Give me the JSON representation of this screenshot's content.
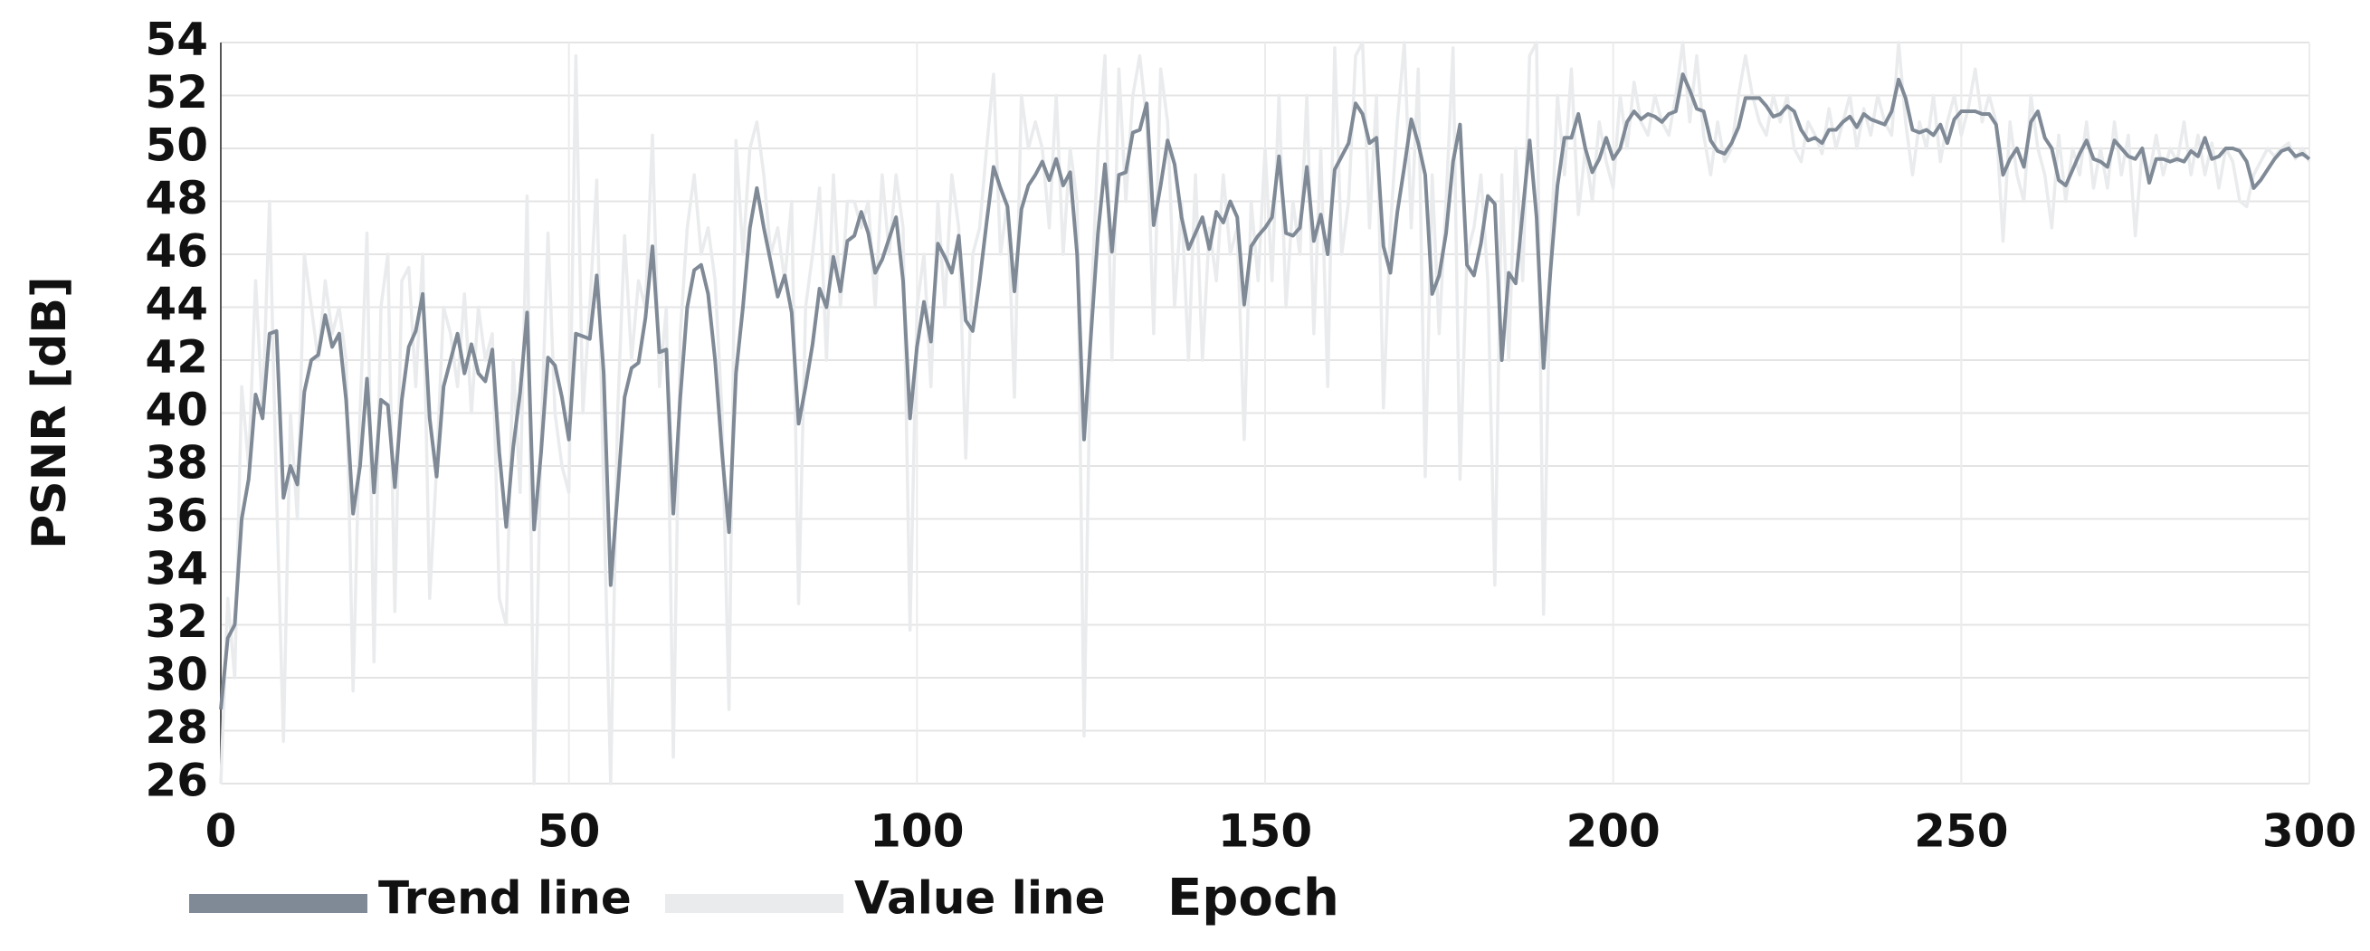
{
  "chart_data": {
    "type": "line",
    "x_label": "Epoch",
    "y_label": "PSNR [dB]",
    "x": [
      0,
      1,
      2,
      3,
      4,
      5,
      6,
      7,
      8,
      9,
      10,
      11,
      12,
      13,
      14,
      15,
      16,
      17,
      18,
      19,
      20,
      21,
      22,
      23,
      24,
      25,
      26,
      27,
      28,
      29,
      30,
      31,
      32,
      33,
      34,
      35,
      36,
      37,
      38,
      39,
      40,
      41,
      42,
      43,
      44,
      45,
      46,
      47,
      48,
      49,
      50,
      51,
      52,
      53,
      54,
      55,
      56,
      57,
      58,
      59,
      60,
      61,
      62,
      63,
      64,
      65,
      66,
      67,
      68,
      69,
      70,
      71,
      72,
      73,
      74,
      75,
      76,
      77,
      78,
      79,
      80,
      81,
      82,
      83,
      84,
      85,
      86,
      87,
      88,
      89,
      90,
      91,
      92,
      93,
      94,
      95,
      96,
      97,
      98,
      99,
      100,
      101,
      102,
      103,
      104,
      105,
      106,
      107,
      108,
      109,
      110,
      111,
      112,
      113,
      114,
      115,
      116,
      117,
      118,
      119,
      120,
      121,
      122,
      123,
      124,
      125,
      126,
      127,
      128,
      129,
      130,
      131,
      132,
      133,
      134,
      135,
      136,
      137,
      138,
      139,
      140,
      141,
      142,
      143,
      144,
      145,
      146,
      147,
      148,
      149,
      150,
      151,
      152,
      153,
      154,
      155,
      156,
      157,
      158,
      159,
      160,
      161,
      162,
      163,
      164,
      165,
      166,
      167,
      168,
      169,
      170,
      171,
      172,
      173,
      174,
      175,
      176,
      177,
      178,
      179,
      180,
      181,
      182,
      183,
      184,
      185,
      186,
      187,
      188,
      189,
      190,
      191,
      192,
      193,
      194,
      195,
      196,
      197,
      198,
      199,
      200,
      201,
      202,
      203,
      204,
      205,
      206,
      207,
      208,
      209,
      210,
      211,
      212,
      213,
      214,
      215,
      216,
      217,
      218,
      219,
      220,
      221,
      222,
      223,
      224,
      225,
      226,
      227,
      228,
      229,
      230,
      231,
      232,
      233,
      234,
      235,
      236,
      237,
      238,
      239,
      240,
      241,
      242,
      243,
      244,
      245,
      246,
      247,
      248,
      249,
      250,
      251,
      252,
      253,
      254,
      255,
      256,
      257,
      258,
      259,
      260,
      261,
      262,
      263,
      264,
      265,
      266,
      267,
      268,
      269,
      270,
      271,
      272,
      273,
      274,
      275,
      276,
      277,
      278,
      279,
      280,
      281,
      282,
      283,
      284,
      285,
      286,
      287,
      288,
      289,
      290,
      291,
      292,
      293,
      294,
      295,
      296,
      297,
      298,
      299,
      300
    ],
    "series": [
      {
        "name": "Value line",
        "color": "#e9ebed",
        "values": [
          26,
          33,
          30,
          41,
          38,
          45,
          40,
          48,
          37,
          27.6,
          40,
          36,
          46,
          44,
          42,
          45,
          43,
          44,
          42,
          29.5,
          40,
          46.8,
          30.6,
          44,
          46,
          32.5,
          45,
          45.5,
          41,
          46,
          33,
          38,
          44,
          43,
          41,
          44.5,
          40,
          44,
          42,
          43,
          33,
          32,
          42,
          37,
          48.2,
          26,
          39,
          46.8,
          40,
          38,
          37,
          53.5,
          40,
          44,
          48.8,
          37,
          26,
          40,
          46.7,
          42,
          45,
          44,
          50.5,
          41,
          44,
          27,
          43,
          47,
          49,
          46,
          47,
          45,
          40,
          28.8,
          50.3,
          46,
          50,
          51,
          49,
          46,
          47,
          45,
          48,
          32.8,
          44,
          46,
          48.5,
          42,
          49,
          44,
          48,
          48,
          47,
          48,
          44,
          49,
          46,
          49,
          47,
          31.8,
          44,
          46,
          41,
          48,
          44,
          49,
          47,
          38.3,
          46,
          47,
          50,
          52.8,
          46,
          48,
          40.6,
          52,
          50,
          51,
          50,
          47,
          52,
          46,
          50,
          48,
          27.8,
          44,
          50,
          53.5,
          42,
          53,
          48,
          52,
          53.5,
          51,
          43,
          53,
          51,
          44,
          48,
          42,
          49,
          42,
          47,
          45,
          49,
          46,
          47,
          39,
          48,
          45,
          50,
          45,
          52,
          44,
          48,
          46,
          52,
          43,
          50,
          41,
          53.8,
          46,
          48,
          53.5,
          54,
          47,
          52,
          40.2,
          47,
          51,
          54,
          47,
          53,
          37.6,
          49,
          43,
          48,
          53.8,
          37.5,
          46,
          47,
          49,
          45,
          33.5,
          49,
          42,
          50,
          45,
          53.5,
          54,
          32.4,
          46,
          52,
          49,
          53,
          47.5,
          50,
          48,
          51,
          49.5,
          48.5,
          52,
          50,
          52.5,
          51,
          50.5,
          52,
          51,
          50.5,
          52,
          54,
          51,
          53.5,
          50.5,
          49,
          51,
          49.5,
          50,
          52,
          53.5,
          52,
          51,
          50.5,
          52,
          51,
          52,
          50,
          49.5,
          51,
          50.5,
          49.8,
          51.5,
          50,
          51,
          52,
          50,
          51.5,
          50.5,
          52,
          51,
          50.5,
          54,
          51,
          49,
          51,
          50,
          52,
          49.5,
          51,
          52,
          50.5,
          51.5,
          53,
          51,
          52,
          51,
          46.5,
          51,
          49,
          48,
          52,
          50,
          49,
          47,
          50.5,
          48,
          50,
          49,
          51,
          48.5,
          50,
          48.5,
          51,
          49,
          50.5,
          46.7,
          50,
          49,
          50.5,
          49,
          50,
          49.5,
          51,
          49,
          50.5,
          49,
          50.2,
          48.5,
          50,
          49.5,
          48,
          47.8,
          49,
          49.5,
          50,
          49.7,
          50,
          50.2,
          49.6,
          50,
          49.5
        ]
      },
      {
        "name": "Trend line",
        "color": "#7f8a96",
        "values": [
          28.8,
          31.5,
          32,
          36,
          37.5,
          40.7,
          39.8,
          43,
          43.1,
          36.8,
          38,
          37.3,
          40.8,
          42,
          42.2,
          43.7,
          42.5,
          43,
          40.5,
          36.2,
          38,
          41.3,
          37,
          40.5,
          40.3,
          37.2,
          40.5,
          42.5,
          43.1,
          44.5,
          39.8,
          37.6,
          41,
          42,
          43,
          41.5,
          42.6,
          41.5,
          41.2,
          42.4,
          38.5,
          35.7,
          38.7,
          40.8,
          43.8,
          35.6,
          38.5,
          42.1,
          41.8,
          40.6,
          39,
          43,
          42.9,
          42.8,
          45.2,
          41.5,
          33.5,
          37,
          40.6,
          41.7,
          41.9,
          43.6,
          46.3,
          42.3,
          42.4,
          36.2,
          40.6,
          44,
          45.4,
          45.6,
          44.5,
          42,
          38.5,
          35.5,
          41.5,
          44,
          47,
          48.5,
          47,
          45.7,
          44.4,
          45.2,
          43.8,
          39.6,
          41,
          42.6,
          44.7,
          44,
          45.9,
          44.6,
          46.5,
          46.7,
          47.6,
          46.8,
          45.3,
          45.8,
          46.6,
          47.4,
          45,
          39.8,
          42.5,
          44.2,
          42.7,
          46.4,
          45.9,
          45.3,
          46.7,
          43.5,
          43.1,
          45,
          47.2,
          49.3,
          48.5,
          47.8,
          44.6,
          47.7,
          48.6,
          49,
          49.5,
          48.8,
          49.6,
          48.6,
          49.1,
          46,
          39,
          43,
          46.8,
          49.4,
          46.1,
          49,
          49.1,
          50.6,
          50.7,
          51.7,
          47.1,
          48.6,
          50.3,
          49.4,
          47.4,
          46.2,
          46.8,
          47.4,
          46.2,
          47.6,
          47.2,
          48,
          47.4,
          44.1,
          46.3,
          46.7,
          47,
          47.4,
          49.7,
          46.8,
          46.7,
          47,
          49.3,
          46.5,
          47.5,
          46,
          49.2,
          49.7,
          50.2,
          51.7,
          51.3,
          50.2,
          50.4,
          46.3,
          45.3,
          47.6,
          49.3,
          51.1,
          50.2,
          49,
          44.5,
          45.2,
          46.8,
          49.5,
          50.9,
          45.6,
          45.2,
          46.4,
          48.2,
          47.9,
          42,
          45.3,
          44.9,
          47.6,
          50.3,
          47.4,
          41.7,
          45.4,
          48.6,
          50.4,
          50.4,
          51.3,
          50,
          49.1,
          49.6,
          50.4,
          49.6,
          50,
          51,
          51.4,
          51.1,
          51.3,
          51.2,
          51,
          51.3,
          51.4,
          52.8,
          52.2,
          51.5,
          51.4,
          50.3,
          49.9,
          49.8,
          50.2,
          50.8,
          51.9,
          51.9,
          51.9,
          51.6,
          51.2,
          51.3,
          51.6,
          51.4,
          50.7,
          50.3,
          50.4,
          50.2,
          50.7,
          50.7,
          51,
          51.2,
          50.8,
          51.3,
          51.1,
          51,
          50.9,
          51.4,
          52.6,
          51.9,
          50.7,
          50.6,
          50.7,
          50.5,
          50.9,
          50.2,
          51.1,
          51.4,
          51.4,
          51.4,
          51.3,
          51.3,
          50.9,
          49,
          49.6,
          50,
          49.3,
          51,
          51.4,
          50.4,
          50,
          48.8,
          48.6,
          49.2,
          49.8,
          50.3,
          49.6,
          49.5,
          49.3,
          50.3,
          50,
          49.7,
          49.6,
          50,
          48.7,
          49.6,
          49.6,
          49.5,
          49.6,
          49.5,
          49.9,
          49.7,
          50.4,
          49.6,
          49.7,
          50,
          50,
          49.9,
          49.5,
          48.5,
          48.8,
          49.2,
          49.6,
          49.9,
          50,
          49.7,
          49.8,
          49.6
        ]
      }
    ],
    "xlim": [
      0,
      300
    ],
    "xticks": [
      0,
      50,
      100,
      150,
      200,
      250,
      300
    ],
    "ylim": [
      26,
      54
    ],
    "yticks": [
      26,
      28,
      30,
      32,
      34,
      36,
      38,
      40,
      42,
      44,
      46,
      48,
      50,
      52,
      54
    ],
    "grid": true,
    "legend": "bottom"
  }
}
